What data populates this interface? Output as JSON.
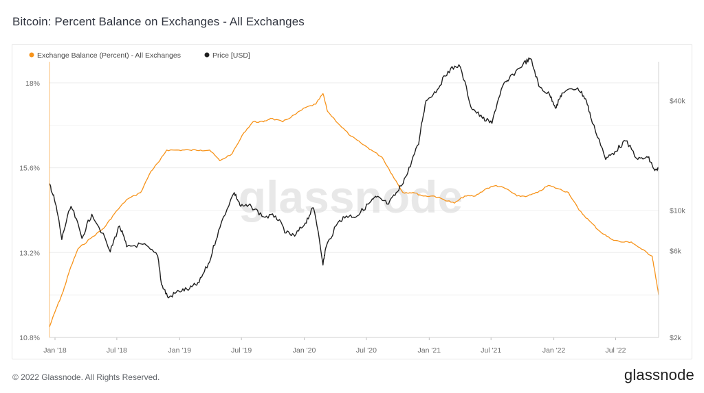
{
  "header": {
    "title": "Bitcoin: Percent Balance on Exchanges - All Exchanges"
  },
  "footer": {
    "copyright": "© 2022 Glassnode. All Rights Reserved.",
    "logo": "glassnode"
  },
  "watermark": "glassnode",
  "colors": {
    "balance": "#f7931a",
    "price": "#1f1f1f",
    "grid": "#ececec"
  },
  "chart_data": {
    "type": "line",
    "title": "Bitcoin: Percent Balance on Exchanges - All Exchanges",
    "legend": {
      "placement": "top-left",
      "entries": [
        "Exchange Balance (Percent) - All Exchanges",
        "Price [USD]"
      ]
    },
    "grid": true,
    "x_ticks": [
      "Jan '18",
      "Jul '18",
      "Jan '19",
      "Jul '19",
      "Jan '20",
      "Jul '20",
      "Jan '21",
      "Jul '21",
      "Jan '22",
      "Jul '22"
    ],
    "x_range": [
      "2018-01-01",
      "2022-11-20"
    ],
    "y_left": {
      "ticks": [
        "10.8%",
        "13.2%",
        "15.6%",
        "18%"
      ],
      "range": [
        10.8,
        18.6
      ],
      "unit": "percent"
    },
    "y_right": {
      "ticks": [
        "$2k",
        "$6k",
        "$10k",
        "$40k"
      ],
      "tick_values": [
        2000,
        6000,
        10000,
        40000
      ],
      "scale": "log",
      "unit": "USD"
    },
    "series": [
      {
        "name": "Exchange Balance (Percent) - All Exchanges",
        "axis": "left",
        "color": "#f7931a",
        "x": [
          "2018-01-01",
          "2018-01-20",
          "2018-02-10",
          "2018-03-01",
          "2018-03-25",
          "2018-05-01",
          "2018-06-10",
          "2018-07-10",
          "2018-08-15",
          "2018-09-25",
          "2018-10-25",
          "2018-11-20",
          "2018-12-10",
          "2019-01-15",
          "2019-02-15",
          "2019-03-20",
          "2019-04-15",
          "2019-05-15",
          "2019-06-20",
          "2019-07-25",
          "2019-08-20",
          "2019-09-20",
          "2019-10-10",
          "2019-11-15",
          "2019-12-20",
          "2020-01-20",
          "2020-02-20",
          "2020-03-12",
          "2020-03-25",
          "2020-05-01",
          "2020-06-01",
          "2020-07-01",
          "2020-08-01",
          "2020-09-01",
          "2020-10-01",
          "2020-11-01",
          "2020-12-01",
          "2021-01-01",
          "2021-02-01",
          "2021-03-01",
          "2021-04-01",
          "2021-05-01",
          "2021-06-01",
          "2021-07-01",
          "2021-08-01",
          "2021-09-01",
          "2021-10-01",
          "2021-11-01",
          "2021-12-01",
          "2022-01-01",
          "2022-02-01",
          "2022-03-01",
          "2022-04-01",
          "2022-05-01",
          "2022-06-01",
          "2022-07-01",
          "2022-08-01",
          "2022-09-01",
          "2022-10-01",
          "2022-11-01",
          "2022-11-10",
          "2022-11-20"
        ],
        "values": [
          11.1,
          11.6,
          12.1,
          12.7,
          13.3,
          13.6,
          13.9,
          14.3,
          14.7,
          14.9,
          15.5,
          15.8,
          16.1,
          16.1,
          16.1,
          16.1,
          16.1,
          15.8,
          16.0,
          16.6,
          16.9,
          16.9,
          17.0,
          16.9,
          17.1,
          17.3,
          17.4,
          17.7,
          17.2,
          16.8,
          16.5,
          16.3,
          16.1,
          15.9,
          15.4,
          14.9,
          14.9,
          14.8,
          14.8,
          14.7,
          14.6,
          14.8,
          14.8,
          15.0,
          15.1,
          15.0,
          14.8,
          14.8,
          14.9,
          15.1,
          15.0,
          14.9,
          14.4,
          14.1,
          13.8,
          13.6,
          13.5,
          13.5,
          13.3,
          13.1,
          12.6,
          12.0
        ]
      },
      {
        "name": "Price [USD]",
        "axis": "right",
        "color": "#1f1f1f",
        "x": [
          "2018-01-01",
          "2018-01-15",
          "2018-02-06",
          "2018-03-05",
          "2018-04-06",
          "2018-05-05",
          "2018-06-28",
          "2018-07-25",
          "2018-08-15",
          "2018-10-01",
          "2018-11-14",
          "2018-11-25",
          "2018-12-15",
          "2019-01-15",
          "2019-02-15",
          "2019-03-15",
          "2019-04-15",
          "2019-05-15",
          "2019-06-26",
          "2019-07-15",
          "2019-08-15",
          "2019-09-20",
          "2019-10-25",
          "2019-11-25",
          "2019-12-20",
          "2020-01-20",
          "2020-02-13",
          "2020-03-12",
          "2020-03-20",
          "2020-04-30",
          "2020-05-20",
          "2020-06-20",
          "2020-07-27",
          "2020-08-15",
          "2020-09-20",
          "2020-10-20",
          "2020-11-15",
          "2020-12-17",
          "2021-01-08",
          "2021-02-10",
          "2021-03-13",
          "2021-04-14",
          "2021-05-19",
          "2021-06-22",
          "2021-07-20",
          "2021-08-20",
          "2021-09-07",
          "2021-10-20",
          "2021-11-10",
          "2021-12-04",
          "2022-01-05",
          "2022-01-24",
          "2022-02-10",
          "2022-03-28",
          "2022-04-20",
          "2022-05-10",
          "2022-06-18",
          "2022-07-15",
          "2022-08-15",
          "2022-09-20",
          "2022-10-20",
          "2022-11-09",
          "2022-11-20"
        ],
        "values": [
          14000,
          11500,
          6900,
          10500,
          7000,
          9500,
          5900,
          8200,
          6300,
          6500,
          5600,
          3900,
          3300,
          3600,
          3700,
          4000,
          5200,
          8000,
          12500,
          10500,
          10500,
          9200,
          9300,
          7500,
          7200,
          8500,
          10300,
          5000,
          6200,
          8800,
          9300,
          9300,
          11000,
          11800,
          10800,
          12900,
          16000,
          23000,
          40000,
          46000,
          58000,
          63000,
          37000,
          32000,
          30000,
          48000,
          52000,
          64000,
          68000,
          48000,
          43000,
          36500,
          44000,
          47000,
          41000,
          30000,
          19000,
          21000,
          24000,
          19000,
          19500,
          16500,
          16700
        ]
      }
    ]
  }
}
